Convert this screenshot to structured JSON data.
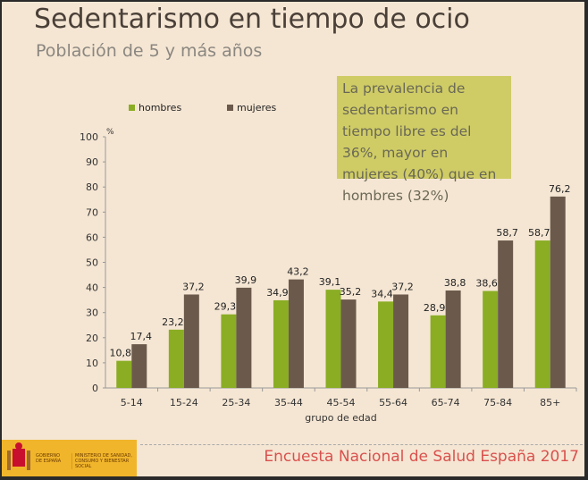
{
  "title": "Sedentarismo en tiempo de ocio",
  "subtitle": "Población de 5 y más años",
  "callout": "La prevalencia de sedentarismo en tiempo libre es del 36%, mayor en mujeres (40%) que en hombres (32%)",
  "footer": {
    "survey": "Encuesta Nacional de Salud España 2017",
    "logo_gov": "GOBIERNO DE ESPAÑA",
    "logo_ministry": "MINISTERIO DE SANIDAD, CONSUMO Y BIENESTAR SOCIAL"
  },
  "colors": {
    "hombres": "#8aad24",
    "mujeres": "#6b5a4b"
  },
  "chart_data": {
    "type": "bar",
    "title": "Sedentarismo en tiempo de ocio",
    "xlabel": "grupo de edad",
    "ylabel": "%",
    "ylim": [
      0,
      100
    ],
    "yticks": [
      0,
      10,
      20,
      30,
      40,
      50,
      60,
      70,
      80,
      90,
      100
    ],
    "legend": "top-left",
    "categories": [
      "5-14",
      "15-24",
      "25-34",
      "35-44",
      "45-54",
      "55-64",
      "65-74",
      "75-84",
      "85+"
    ],
    "series": [
      {
        "name": "hombres",
        "values": [
          10.8,
          23.2,
          29.3,
          34.9,
          39.1,
          34.4,
          28.9,
          38.6,
          58.7
        ],
        "labels": [
          "10,8",
          "23,2",
          "29,3",
          "34,9",
          "39,1",
          "34,4",
          "28,9",
          "38,6",
          "58,7"
        ]
      },
      {
        "name": "mujeres",
        "values": [
          17.4,
          37.2,
          39.9,
          43.2,
          35.2,
          37.2,
          38.8,
          58.7,
          76.2
        ],
        "labels": [
          "17,4",
          "37,2",
          "39,9",
          "43,2",
          "35,2",
          "37,2",
          "38,8",
          "58,7",
          "76,2"
        ]
      }
    ]
  }
}
